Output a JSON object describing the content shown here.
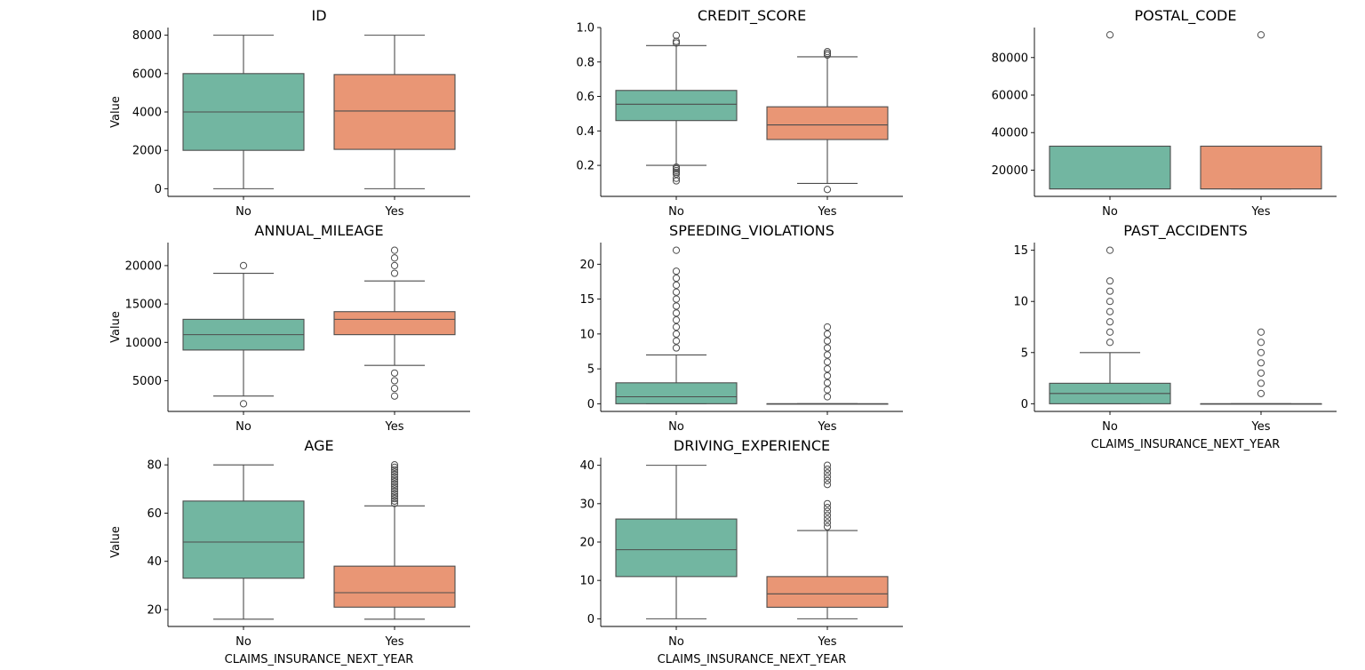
{
  "chart_data": {
    "type": "box",
    "categories": [
      "No",
      "Yes"
    ],
    "colors": [
      "#72b6a1",
      "#e99675"
    ],
    "subplots": [
      {
        "title": "ID",
        "ylabel": "Value",
        "xlabel": "",
        "ylim": [
          -400,
          8400
        ],
        "yticks": [
          0,
          2000,
          4000,
          6000,
          8000
        ],
        "ytick_labels": [
          "0",
          "2000",
          "4000",
          "6000",
          "8000"
        ],
        "boxes": [
          {
            "min": 0,
            "q1": 2000,
            "median": 4000,
            "q3": 6000,
            "max": 8000,
            "outliers": []
          },
          {
            "min": 0,
            "q1": 2050,
            "median": 4050,
            "q3": 5950,
            "max": 8000,
            "outliers": []
          }
        ]
      },
      {
        "title": "CREDIT_SCORE",
        "ylabel": "",
        "xlabel": "",
        "ylim": [
          0.02,
          1.0
        ],
        "yticks": [
          0.2,
          0.4,
          0.6,
          0.8,
          1.0
        ],
        "ytick_labels": [
          "0.2",
          "0.4",
          "0.6",
          "0.8",
          "1.0"
        ],
        "boxes": [
          {
            "min": 0.2,
            "q1": 0.46,
            "median": 0.555,
            "q3": 0.635,
            "max": 0.895,
            "outliers": [
              0.91,
              0.92,
              0.955,
              0.19,
              0.18,
              0.17,
              0.16,
              0.15,
              0.125,
              0.11
            ]
          },
          {
            "min": 0.095,
            "q1": 0.35,
            "median": 0.435,
            "q3": 0.54,
            "max": 0.83,
            "outliers": [
              0.84,
              0.85,
              0.86,
              0.06
            ]
          }
        ]
      },
      {
        "title": "POSTAL_CODE",
        "ylabel": "",
        "xlabel": "",
        "ylim": [
          6000,
          96000
        ],
        "yticks": [
          20000,
          40000,
          60000,
          80000
        ],
        "ytick_labels": [
          "20000",
          "40000",
          "60000",
          "80000"
        ],
        "boxes": [
          {
            "min": 10000,
            "q1": 10000,
            "median": 10000,
            "q3": 32765,
            "max": 32765,
            "outliers": [
              92101
            ]
          },
          {
            "min": 10000,
            "q1": 10000,
            "median": 10000,
            "q3": 32765,
            "max": 32765,
            "outliers": [
              92101
            ]
          }
        ]
      },
      {
        "title": "ANNUAL_MILEAGE",
        "ylabel": "Value",
        "xlabel": "",
        "ylim": [
          1000,
          23000
        ],
        "yticks": [
          5000,
          10000,
          15000,
          20000
        ],
        "ytick_labels": [
          "5000",
          "10000",
          "15000",
          "20000"
        ],
        "boxes": [
          {
            "min": 3000,
            "q1": 9000,
            "median": 11000,
            "q3": 13000,
            "max": 19000,
            "outliers": [
              20000,
              2000
            ]
          },
          {
            "min": 7000,
            "q1": 11000,
            "median": 13000,
            "q3": 14000,
            "max": 18000,
            "outliers": [
              19000,
              20000,
              21000,
              22000,
              6000,
              5000,
              4000,
              3000
            ]
          }
        ]
      },
      {
        "title": "SPEEDING_VIOLATIONS",
        "ylabel": "",
        "xlabel": "",
        "ylim": [
          -1.1,
          23.1
        ],
        "yticks": [
          0,
          5,
          10,
          15,
          20
        ],
        "ytick_labels": [
          "0",
          "5",
          "10",
          "15",
          "20"
        ],
        "boxes": [
          {
            "min": 0,
            "q1": 0,
            "median": 1,
            "q3": 3,
            "max": 7,
            "outliers": [
              8,
              9,
              10,
              11,
              12,
              13,
              14,
              15,
              16,
              17,
              18,
              19,
              22
            ]
          },
          {
            "min": 0,
            "q1": 0,
            "median": 0,
            "q3": 0,
            "max": 0,
            "outliers": [
              1,
              2,
              3,
              4,
              5,
              6,
              7,
              8,
              9,
              10,
              11
            ]
          }
        ]
      },
      {
        "title": "PAST_ACCIDENTS",
        "ylabel": "",
        "xlabel": "CLAIMS_INSURANCE_NEXT_YEAR",
        "ylim": [
          -0.75,
          15.75
        ],
        "yticks": [
          0,
          5,
          10,
          15
        ],
        "ytick_labels": [
          "0",
          "5",
          "10",
          "15"
        ],
        "boxes": [
          {
            "min": 0,
            "q1": 0,
            "median": 1,
            "q3": 2,
            "max": 5,
            "outliers": [
              6,
              7,
              8,
              9,
              10,
              11,
              12,
              15
            ]
          },
          {
            "min": 0,
            "q1": 0,
            "median": 0,
            "q3": 0,
            "max": 0,
            "outliers": [
              1,
              2,
              3,
              4,
              5,
              6,
              7
            ]
          }
        ]
      },
      {
        "title": "AGE",
        "ylabel": "Value",
        "xlabel": "CLAIMS_INSURANCE_NEXT_YEAR",
        "ylim": [
          13,
          83
        ],
        "yticks": [
          20,
          40,
          60,
          80
        ],
        "ytick_labels": [
          "20",
          "40",
          "60",
          "80"
        ],
        "boxes": [
          {
            "min": 16,
            "q1": 33,
            "median": 48,
            "q3": 65,
            "max": 80,
            "outliers": []
          },
          {
            "min": 16,
            "q1": 21,
            "median": 27,
            "q3": 38,
            "max": 63,
            "outliers": [
              64,
              65,
              66,
              67,
              68,
              69,
              70,
              71,
              72,
              73,
              74,
              75,
              76,
              77,
              78,
              79,
              80
            ]
          }
        ]
      },
      {
        "title": "DRIVING_EXPERIENCE",
        "ylabel": "",
        "xlabel": "CLAIMS_INSURANCE_NEXT_YEAR",
        "ylim": [
          -2,
          42
        ],
        "yticks": [
          0,
          10,
          20,
          30,
          40
        ],
        "ytick_labels": [
          "0",
          "10",
          "20",
          "30",
          "40"
        ],
        "boxes": [
          {
            "min": 0,
            "q1": 11,
            "median": 18,
            "q3": 26,
            "max": 40,
            "outliers": []
          },
          {
            "min": 0,
            "q1": 3,
            "median": 6.5,
            "q3": 11,
            "max": 23,
            "outliers": [
              24,
              25,
              26,
              27,
              28,
              29,
              30,
              35,
              36,
              37,
              38,
              39,
              40
            ]
          }
        ]
      }
    ]
  }
}
